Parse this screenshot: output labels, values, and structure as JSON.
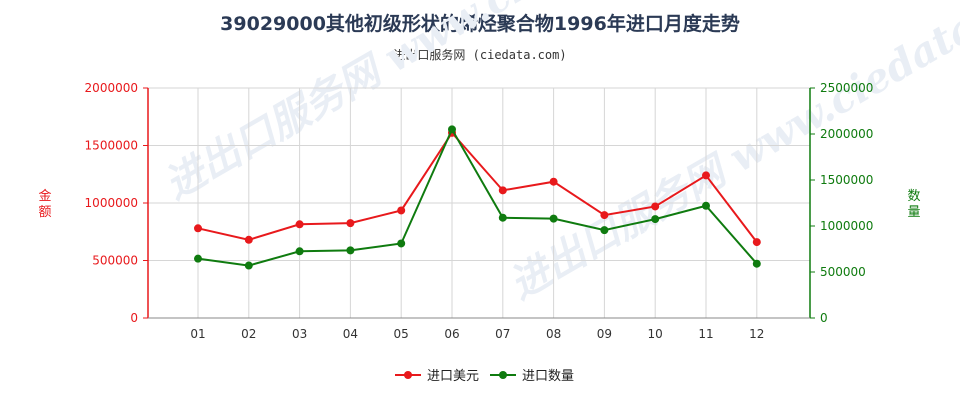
{
  "title": "39029000其他初级形状的烯烃聚合物1996年进口月度走势",
  "subtitle": "进出口服务网 (ciedata.com)",
  "watermark": "进出口服务网 www.ciedata.com",
  "chart_data": {
    "type": "line",
    "categories": [
      "01",
      "02",
      "03",
      "04",
      "05",
      "06",
      "07",
      "08",
      "09",
      "10",
      "11",
      "12"
    ],
    "y_left": {
      "label": "金额",
      "ylim": [
        0,
        2000000
      ],
      "ticks": [
        "0",
        "500000",
        "1000000",
        "1500000",
        "2000000"
      ],
      "color": "#e8191c"
    },
    "y_right": {
      "label": "数量",
      "ylim": [
        0,
        2500000
      ],
      "ticks": [
        "0",
        "500000",
        "1000000",
        "1500000",
        "2000000",
        "2500000"
      ],
      "color": "#0f7b0f"
    },
    "series": [
      {
        "name": "进口美元",
        "axis": "left",
        "color": "#e8191c",
        "values": [
          780000,
          680000,
          815000,
          825000,
          935000,
          1610000,
          1110000,
          1185000,
          895000,
          970000,
          1240000,
          660000
        ]
      },
      {
        "name": "进口数量",
        "axis": "right",
        "color": "#0f7b0f",
        "values": [
          645000,
          570000,
          725000,
          735000,
          810000,
          2050000,
          1090000,
          1080000,
          955000,
          1075000,
          1220000,
          590000
        ]
      }
    ],
    "grid": true,
    "legend": "bottom-center"
  }
}
